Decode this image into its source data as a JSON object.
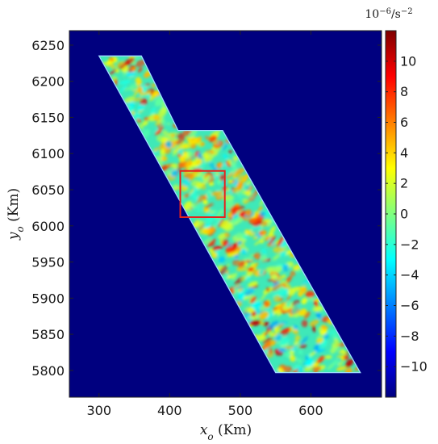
{
  "chart_data": {
    "type": "heatmap",
    "xlabel": "x_o (Km)",
    "xlabel_parts": {
      "base": "x",
      "sub": "o",
      "unit": " (Km)"
    },
    "ylabel": "y_o (Km)",
    "ylabel_parts": {
      "base": "y",
      "sub": "o",
      "unit": " (Km)"
    },
    "xlim": [
      258,
      700
    ],
    "ylim": [
      5763,
      6270
    ],
    "x_ticks": [
      300,
      400,
      500,
      600
    ],
    "y_ticks": [
      5800,
      5850,
      5900,
      5950,
      6000,
      6050,
      6100,
      6150,
      6200,
      6250
    ],
    "background_color": "#00007f",
    "colormap": "jet",
    "colorbar": {
      "title": "10^-6/s^-2",
      "title_parts": {
        "base": "10",
        "exp1": "−6",
        "mid": "/s",
        "exp2": "−2"
      },
      "range": [
        -12,
        12
      ],
      "ticks": [
        -10,
        -8,
        -6,
        -4,
        -2,
        0,
        2,
        4,
        6,
        8,
        10
      ],
      "tick_labels": [
        "−10",
        "−8",
        "−6",
        "−4",
        "−2",
        "0",
        "2",
        "4",
        "6",
        "8",
        "10"
      ]
    },
    "swath_polygon": [
      [
        300,
        6235
      ],
      [
        360,
        6235
      ],
      [
        412,
        6132
      ],
      [
        475,
        6132
      ],
      [
        670,
        5797
      ],
      [
        550,
        5797
      ]
    ],
    "highlight_box": {
      "x": [
        415,
        478
      ],
      "y": [
        6012,
        6076
      ],
      "color": "#e8201a"
    },
    "grid": false
  }
}
